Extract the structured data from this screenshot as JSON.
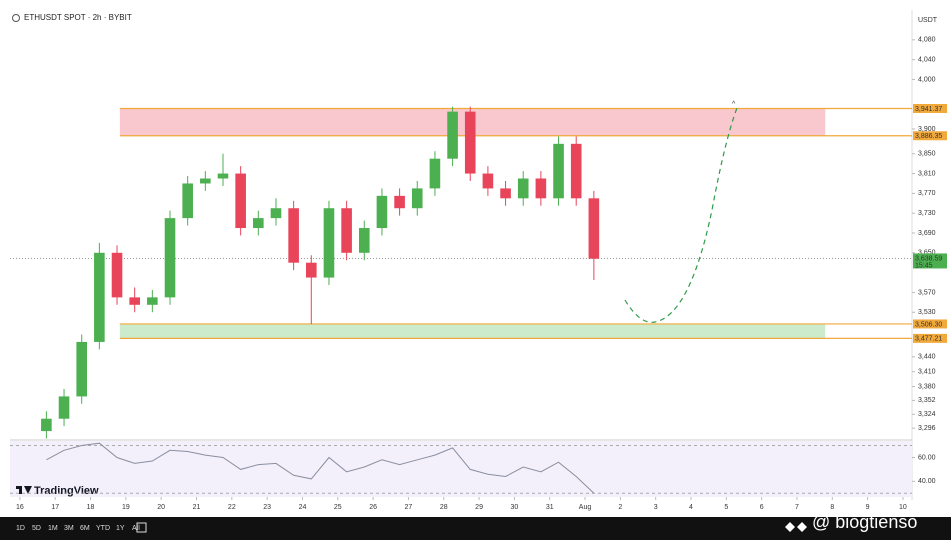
{
  "header": {
    "symbol": "ETHUSDT SPOT · 2h · BYBIT",
    "currency": "USDT"
  },
  "chart_data": {
    "type": "candlestick",
    "x": [
      0.75,
      1.25,
      1.75,
      2.25,
      2.75,
      3.25,
      3.75,
      4.25,
      4.75,
      5.25,
      5.75,
      6.25,
      6.75,
      7.25,
      7.75,
      8.25,
      8.75,
      9.25,
      9.75,
      10.25,
      10.75,
      11.25,
      11.75,
      12.25,
      12.75,
      13.25,
      13.75,
      14.25,
      14.75,
      15.25,
      15.75,
      16.25
    ],
    "open": [
      3290,
      3315,
      3360,
      3470,
      3650,
      3560,
      3545,
      3560,
      3720,
      3790,
      3800,
      3810,
      3700,
      3720,
      3740,
      3630,
      3600,
      3740,
      3650,
      3700,
      3765,
      3740,
      3780,
      3840,
      3935,
      3810,
      3780,
      3760,
      3800,
      3760,
      3870,
      3760
    ],
    "high": [
      3330,
      3375,
      3485,
      3670,
      3665,
      3580,
      3575,
      3735,
      3805,
      3815,
      3850,
      3825,
      3735,
      3760,
      3755,
      3645,
      3755,
      3755,
      3715,
      3780,
      3780,
      3795,
      3855,
      3945,
      3945,
      3825,
      3795,
      3815,
      3815,
      3885,
      3885,
      3775
    ],
    "low": [
      3275,
      3300,
      3345,
      3455,
      3545,
      3530,
      3530,
      3545,
      3705,
      3775,
      3785,
      3685,
      3685,
      3705,
      3615,
      3506,
      3585,
      3635,
      3635,
      3685,
      3725,
      3725,
      3765,
      3825,
      3795,
      3765,
      3745,
      3745,
      3745,
      3745,
      3745,
      3595
    ],
    "close": [
      3315,
      3360,
      3470,
      3650,
      3560,
      3545,
      3560,
      3720,
      3790,
      3800,
      3810,
      3700,
      3720,
      3740,
      3630,
      3600,
      3740,
      3650,
      3700,
      3765,
      3740,
      3780,
      3840,
      3935,
      3810,
      3780,
      3760,
      3800,
      3760,
      3870,
      3760,
      3638
    ],
    "up_color": "#4caf50",
    "down_color": "#e8455a",
    "xlim": [
      -0.28,
      25.2
    ],
    "xticks": [
      {
        "value": 0,
        "label": "16"
      },
      {
        "value": 1,
        "label": "17"
      },
      {
        "value": 2,
        "label": "18"
      },
      {
        "value": 3,
        "label": "19"
      },
      {
        "value": 4,
        "label": "20"
      },
      {
        "value": 5,
        "label": "21"
      },
      {
        "value": 6,
        "label": "22"
      },
      {
        "value": 7,
        "label": "23"
      },
      {
        "value": 8,
        "label": "24"
      },
      {
        "value": 9,
        "label": "25"
      },
      {
        "value": 10,
        "label": "26"
      },
      {
        "value": 11,
        "label": "27"
      },
      {
        "value": 12,
        "label": "28"
      },
      {
        "value": 13,
        "label": "29"
      },
      {
        "value": 14,
        "label": "30"
      },
      {
        "value": 15,
        "label": "31"
      },
      {
        "value": 16,
        "label": "Aug"
      },
      {
        "value": 17,
        "label": "2"
      },
      {
        "value": 18,
        "label": "3"
      },
      {
        "value": 19,
        "label": "4"
      },
      {
        "value": 20,
        "label": "5"
      },
      {
        "value": 21,
        "label": "6"
      },
      {
        "value": 22,
        "label": "7"
      },
      {
        "value": 23,
        "label": "8"
      },
      {
        "value": 24,
        "label": "9"
      },
      {
        "value": 25,
        "label": "10"
      }
    ],
    "ylim": [
      3272,
      4116
    ],
    "yticks": [
      {
        "value": 4080,
        "label": "4,080"
      },
      {
        "value": 4040,
        "label": "4,040"
      },
      {
        "value": 4000,
        "label": "4,000"
      },
      {
        "value": 3900,
        "label": "3,900"
      },
      {
        "value": 3850,
        "label": "3,850"
      },
      {
        "value": 3810,
        "label": "3,810"
      },
      {
        "value": 3770,
        "label": "3,770"
      },
      {
        "value": 3730,
        "label": "3,730"
      },
      {
        "value": 3690,
        "label": "3,690"
      },
      {
        "value": 3650,
        "label": "3,650"
      },
      {
        "value": 3570,
        "label": "3,570"
      },
      {
        "value": 3530,
        "label": "3,530"
      },
      {
        "value": 3440,
        "label": "3,440"
      },
      {
        "value": 3410,
        "label": "3,410"
      },
      {
        "value": 3380,
        "label": "3,380"
      },
      {
        "value": 3352,
        "label": "3,352"
      },
      {
        "value": 3324,
        "label": "3,324"
      },
      {
        "value": 3296,
        "label": "3,296"
      }
    ],
    "zones": [
      {
        "from": 3886.35,
        "to": 3941.37,
        "x": [
          2.83,
          22.8
        ],
        "color": "#f8c8ce"
      },
      {
        "from": 3477.21,
        "to": 3506.3,
        "x": [
          2.83,
          22.8
        ],
        "color": "#ccebcc"
      }
    ],
    "levels": [
      {
        "value": 3941.37,
        "label": "3,941.37"
      },
      {
        "value": 3886.35,
        "label": "3,886.35"
      },
      {
        "value": 3506.3,
        "label": "3,506.30"
      },
      {
        "value": 3477.21,
        "label": "3,477.21"
      }
    ],
    "level_color": "#f2a93b",
    "last_price": {
      "value": 3638.59,
      "label": "3,638.59",
      "time": "15:45",
      "color": "#4caf50"
    },
    "rsi": {
      "values": [
        58,
        66,
        70,
        72,
        60,
        55,
        57,
        66,
        65,
        62,
        60,
        50,
        54,
        55,
        45,
        42,
        60,
        48,
        52,
        58,
        54,
        58,
        62,
        68,
        50,
        46,
        44,
        52,
        48,
        56,
        44,
        30
      ],
      "color": "#8a8fa0",
      "ylim": [
        26,
        78
      ],
      "yticks": [
        {
          "value": 60,
          "label": "60.00"
        },
        {
          "value": 40,
          "label": "40.00"
        }
      ],
      "bands": [
        70,
        30
      ]
    }
  },
  "logo": "TradingView",
  "toolbar": [
    "1D",
    "5D",
    "1M",
    "3M",
    "6M",
    "YTD",
    "1Y",
    "All"
  ],
  "watermark": "@ biogtienso"
}
